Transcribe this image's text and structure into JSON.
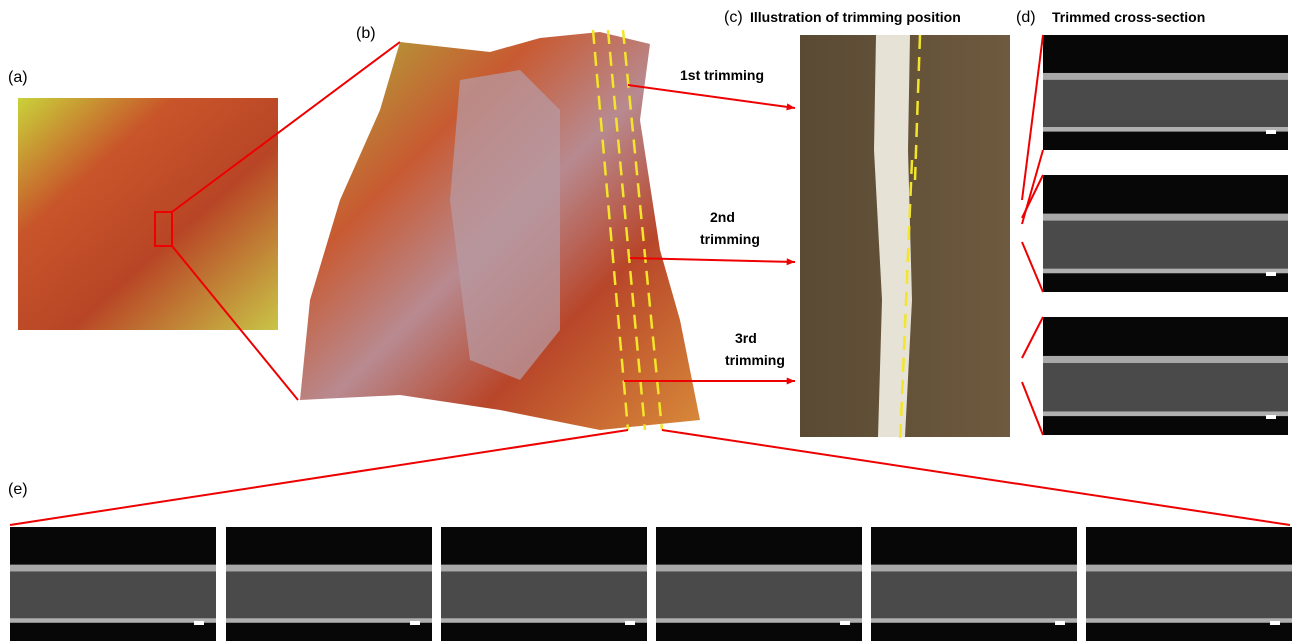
{
  "labels": {
    "a": "(a)",
    "b": "(b)",
    "c": "(c)",
    "d": "(d)",
    "e": "(e)"
  },
  "titles": {
    "c": "Illustration of  trimming position",
    "d": "Trimmed cross-section"
  },
  "annotations": [
    [
      "1st trimming"
    ],
    [
      "2nd",
      "trimming"
    ],
    [
      "3rd",
      "trimming"
    ]
  ]
}
